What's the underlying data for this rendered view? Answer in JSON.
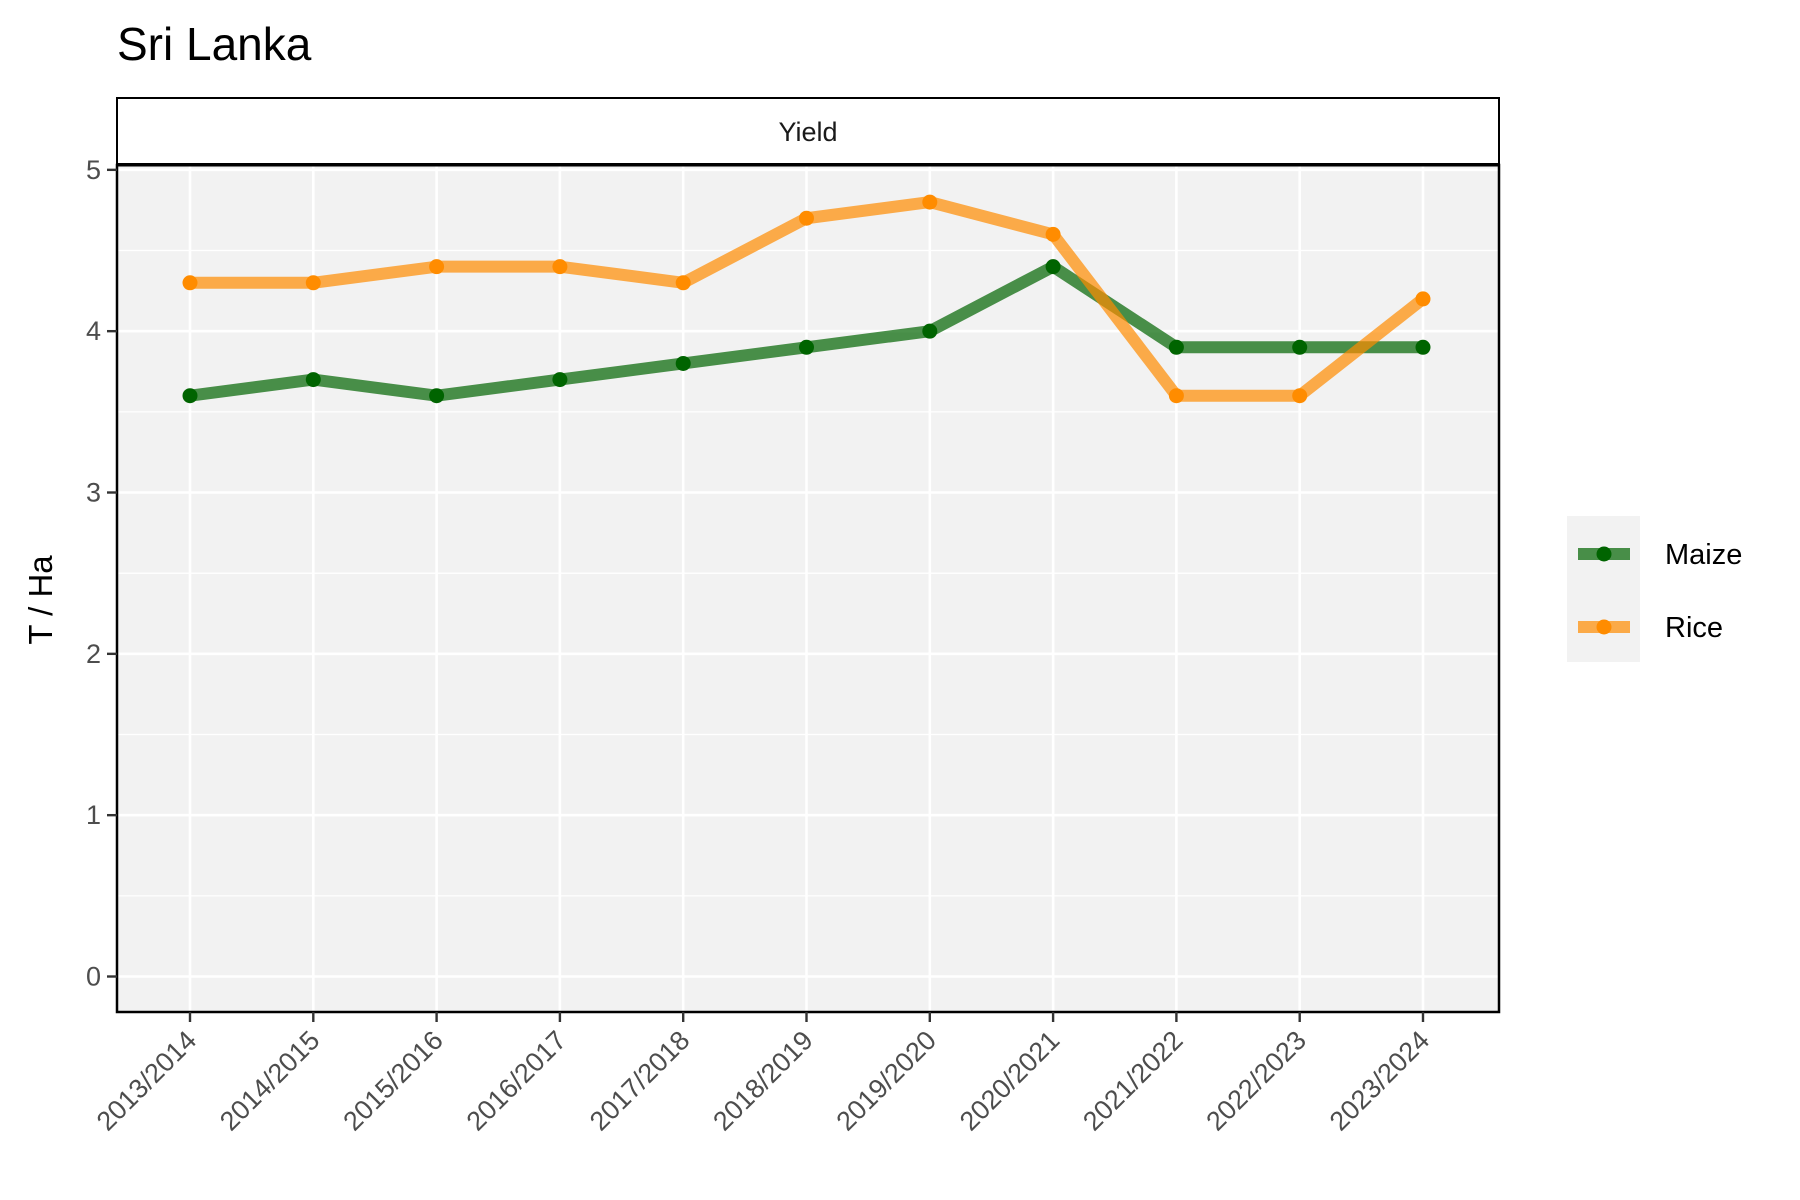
{
  "chart_data": {
    "type": "line",
    "title": "Sri Lanka",
    "facet_label": "Yield",
    "xlabel": "",
    "ylabel": "T / Ha",
    "ylim": [
      -0.22,
      5.03
    ],
    "y_ticks": [
      0,
      1,
      2,
      3,
      4,
      5
    ],
    "grid": true,
    "legend_position": "right",
    "categories": [
      "2013/2014",
      "2014/2015",
      "2015/2016",
      "2016/2017",
      "2017/2018",
      "2018/2019",
      "2019/2020",
      "2020/2021",
      "2021/2022",
      "2022/2023",
      "2023/2024"
    ],
    "series": [
      {
        "name": "Maize",
        "color": "#006400",
        "values": [
          3.6,
          3.7,
          3.6,
          3.7,
          3.8,
          3.9,
          4.0,
          4.4,
          3.9,
          3.9,
          3.9
        ]
      },
      {
        "name": "Rice",
        "color": "#ff8c00",
        "values": [
          4.3,
          4.3,
          4.4,
          4.4,
          4.3,
          4.7,
          4.8,
          4.6,
          3.6,
          3.6,
          4.2
        ]
      }
    ]
  }
}
